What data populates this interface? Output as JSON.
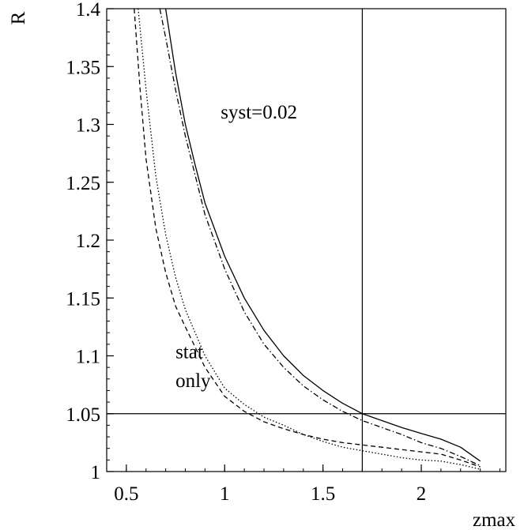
{
  "chart_data": {
    "type": "line",
    "title": "",
    "xlabel": "zmax",
    "ylabel": "R",
    "xlim": [
      0.4,
      2.43
    ],
    "ylim": [
      1.0,
      1.4
    ],
    "xticks": [
      {
        "value": 0.5,
        "label": "0.5"
      },
      {
        "value": 1,
        "label": "1"
      },
      {
        "value": 1.5,
        "label": "1.5"
      },
      {
        "value": 2,
        "label": "2"
      }
    ],
    "yticks": [
      {
        "value": 1.0,
        "label": "1"
      },
      {
        "value": 1.05,
        "label": "1.05"
      },
      {
        "value": 1.1,
        "label": "1.1"
      },
      {
        "value": 1.15,
        "label": "1.15"
      },
      {
        "value": 1.2,
        "label": "1.2"
      },
      {
        "value": 1.25,
        "label": "1.25"
      },
      {
        "value": 1.3,
        "label": "1.3"
      },
      {
        "value": 1.35,
        "label": "1.35"
      },
      {
        "value": 1.4,
        "label": "1.4"
      }
    ],
    "grid": false,
    "reference_lines": {
      "x": 1.7,
      "y": 1.05
    },
    "annotations": [
      {
        "text": "syst=0.02",
        "x": 0.98,
        "y": 1.305
      },
      {
        "text": "stat",
        "x": 0.75,
        "y": 1.098
      },
      {
        "text": "only",
        "x": 0.75,
        "y": 1.073
      }
    ],
    "series": [
      {
        "style": "solid",
        "color": "#000000",
        "x": [
          0.7,
          0.75,
          0.8,
          0.85,
          0.9,
          1.0,
          1.1,
          1.2,
          1.3,
          1.4,
          1.5,
          1.6,
          1.7,
          1.8,
          1.9,
          2.0,
          2.1,
          2.2,
          2.3
        ],
        "y": [
          1.4,
          1.345,
          1.3,
          1.265,
          1.232,
          1.186,
          1.15,
          1.122,
          1.1,
          1.083,
          1.07,
          1.059,
          1.05,
          1.044,
          1.038,
          1.033,
          1.028,
          1.021,
          1.009
        ]
      },
      {
        "style": "dashdot",
        "color": "#000000",
        "x": [
          0.67,
          0.7,
          0.75,
          0.8,
          0.9,
          1.0,
          1.1,
          1.2,
          1.3,
          1.4,
          1.5,
          1.6,
          1.7,
          1.8,
          1.9,
          2.0,
          2.1,
          2.2,
          2.3
        ],
        "y": [
          1.4,
          1.375,
          1.33,
          1.29,
          1.222,
          1.175,
          1.138,
          1.11,
          1.09,
          1.074,
          1.062,
          1.052,
          1.044,
          1.038,
          1.032,
          1.025,
          1.02,
          1.013,
          1.005
        ]
      },
      {
        "style": "dotted",
        "color": "#000000",
        "x": [
          0.56,
          0.6,
          0.65,
          0.7,
          0.75,
          0.8,
          0.9,
          1.0,
          1.1,
          1.2,
          1.3,
          1.4,
          1.5,
          1.6,
          1.7,
          1.8,
          1.9,
          2.0,
          2.1,
          2.2,
          2.3
        ],
        "y": [
          1.4,
          1.33,
          1.255,
          1.205,
          1.168,
          1.14,
          1.1,
          1.072,
          1.058,
          1.047,
          1.04,
          1.032,
          1.026,
          1.021,
          1.018,
          1.015,
          1.012,
          1.01,
          1.009,
          1.006,
          1.002
        ]
      },
      {
        "style": "dashed",
        "color": "#000000",
        "x": [
          0.54,
          0.57,
          0.6,
          0.65,
          0.7,
          0.75,
          0.8,
          0.9,
          1.0,
          1.1,
          1.2,
          1.3,
          1.4,
          1.5,
          1.6,
          1.7,
          1.8,
          1.9,
          2.0,
          2.1,
          2.2,
          2.3
        ],
        "y": [
          1.4,
          1.33,
          1.27,
          1.21,
          1.172,
          1.143,
          1.125,
          1.09,
          1.065,
          1.052,
          1.043,
          1.037,
          1.032,
          1.028,
          1.025,
          1.023,
          1.021,
          1.019,
          1.017,
          1.015,
          1.01,
          1.004
        ]
      }
    ]
  }
}
